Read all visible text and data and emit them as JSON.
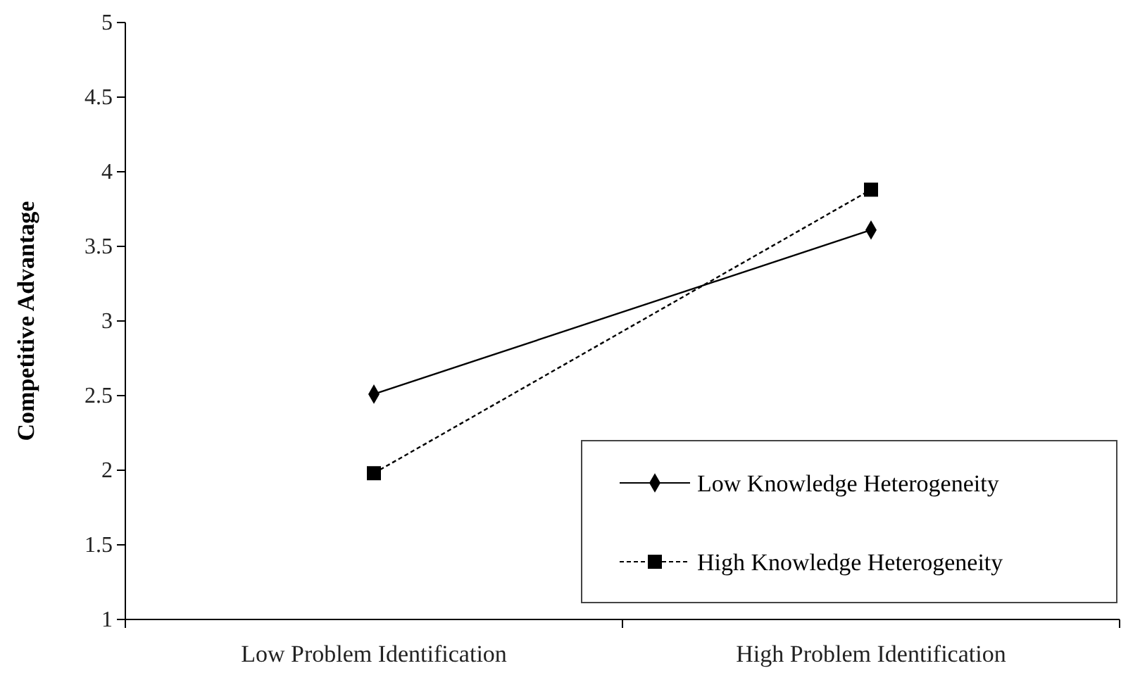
{
  "chart_data": {
    "type": "line",
    "ylabel": "Competitive Advantage",
    "categories": [
      "Low Problem Identification",
      "High Problem Identification"
    ],
    "series": [
      {
        "name": "Low Knowledge Heterogeneity",
        "color": "#000000",
        "values": [
          2.51,
          3.61
        ],
        "marker": "diamond",
        "line_style": "solid"
      },
      {
        "name": "High Knowledge Heterogeneity",
        "color": "#000000",
        "values": [
          1.98,
          3.88
        ],
        "marker": "square",
        "line_style": "dashed"
      }
    ],
    "ylim": [
      1,
      5
    ],
    "yticks": [
      1,
      1.5,
      2,
      2.5,
      3,
      3.5,
      4,
      4.5,
      5
    ],
    "grid": false,
    "legend": "bottom right"
  }
}
